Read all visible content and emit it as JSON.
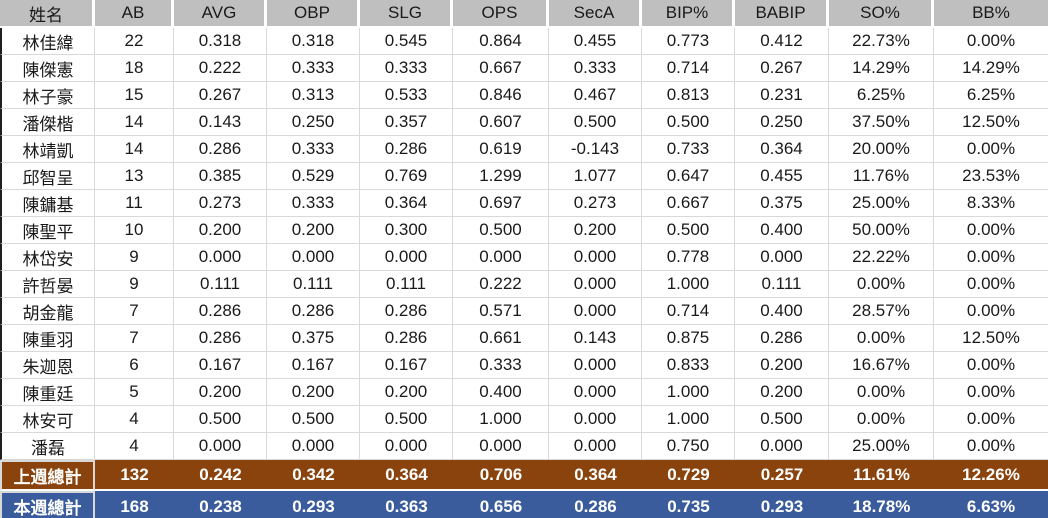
{
  "table": {
    "columns": [
      "姓名",
      "AB",
      "AVG",
      "OBP",
      "SLG",
      "OPS",
      "SecA",
      "BIP%",
      "BABIP",
      "SO%",
      "BB%"
    ],
    "rows": [
      {
        "name": "林佳緯",
        "values": [
          "22",
          "0.318",
          "0.318",
          "0.545",
          "0.864",
          "0.455",
          "0.773",
          "0.412",
          "22.73%",
          "0.00%"
        ]
      },
      {
        "name": "陳傑憲",
        "values": [
          "18",
          "0.222",
          "0.333",
          "0.333",
          "0.667",
          "0.333",
          "0.714",
          "0.267",
          "14.29%",
          "14.29%"
        ]
      },
      {
        "name": "林子豪",
        "values": [
          "15",
          "0.267",
          "0.313",
          "0.533",
          "0.846",
          "0.467",
          "0.813",
          "0.231",
          "6.25%",
          "6.25%"
        ]
      },
      {
        "name": "潘傑楷",
        "values": [
          "14",
          "0.143",
          "0.250",
          "0.357",
          "0.607",
          "0.500",
          "0.500",
          "0.250",
          "37.50%",
          "12.50%"
        ]
      },
      {
        "name": "林靖凱",
        "values": [
          "14",
          "0.286",
          "0.333",
          "0.286",
          "0.619",
          "-0.143",
          "0.733",
          "0.364",
          "20.00%",
          "0.00%"
        ]
      },
      {
        "name": "邱智呈",
        "values": [
          "13",
          "0.385",
          "0.529",
          "0.769",
          "1.299",
          "1.077",
          "0.647",
          "0.455",
          "11.76%",
          "23.53%"
        ]
      },
      {
        "name": "陳鏞基",
        "values": [
          "11",
          "0.273",
          "0.333",
          "0.364",
          "0.697",
          "0.273",
          "0.667",
          "0.375",
          "25.00%",
          "8.33%"
        ]
      },
      {
        "name": "陳聖平",
        "values": [
          "10",
          "0.200",
          "0.200",
          "0.300",
          "0.500",
          "0.200",
          "0.500",
          "0.400",
          "50.00%",
          "0.00%"
        ]
      },
      {
        "name": "林岱安",
        "values": [
          "9",
          "0.000",
          "0.000",
          "0.000",
          "0.000",
          "0.000",
          "0.778",
          "0.000",
          "22.22%",
          "0.00%"
        ]
      },
      {
        "name": "許哲晏",
        "values": [
          "9",
          "0.111",
          "0.111",
          "0.111",
          "0.222",
          "0.000",
          "1.000",
          "0.111",
          "0.00%",
          "0.00%"
        ]
      },
      {
        "name": "胡金龍",
        "values": [
          "7",
          "0.286",
          "0.286",
          "0.286",
          "0.571",
          "0.000",
          "0.714",
          "0.400",
          "28.57%",
          "0.00%"
        ]
      },
      {
        "name": "陳重羽",
        "values": [
          "7",
          "0.286",
          "0.375",
          "0.286",
          "0.661",
          "0.143",
          "0.875",
          "0.286",
          "0.00%",
          "12.50%"
        ]
      },
      {
        "name": "朱迦恩",
        "values": [
          "6",
          "0.167",
          "0.167",
          "0.167",
          "0.333",
          "0.000",
          "0.833",
          "0.200",
          "16.67%",
          "0.00%"
        ]
      },
      {
        "name": "陳重廷",
        "values": [
          "5",
          "0.200",
          "0.200",
          "0.200",
          "0.400",
          "0.000",
          "1.000",
          "0.200",
          "0.00%",
          "0.00%"
        ]
      },
      {
        "name": "林安可",
        "values": [
          "4",
          "0.500",
          "0.500",
          "0.500",
          "1.000",
          "0.000",
          "1.000",
          "0.500",
          "0.00%",
          "0.00%"
        ]
      },
      {
        "name": "潘磊",
        "values": [
          "4",
          "0.000",
          "0.000",
          "0.000",
          "0.000",
          "0.000",
          "0.750",
          "0.000",
          "25.00%",
          "0.00%"
        ]
      }
    ],
    "totals": [
      {
        "label": "上週總計",
        "key": "last-week",
        "bg": "#8B430D",
        "values": [
          "132",
          "0.242",
          "0.342",
          "0.364",
          "0.706",
          "0.364",
          "0.729",
          "0.257",
          "11.61%",
          "12.26%"
        ]
      },
      {
        "label": "本週總計",
        "key": "this-week",
        "bg": "#3A5C9C",
        "values": [
          "168",
          "0.238",
          "0.293",
          "0.363",
          "0.656",
          "0.286",
          "0.735",
          "0.293",
          "18.78%",
          "6.63%"
        ]
      }
    ],
    "colors": {
      "header_bg": "#BFBFBF",
      "grid_line": "#D9D9D9",
      "data_left_border": "#1F1F1F",
      "last_week_bg": "#8B430D",
      "this_week_bg": "#3A5C9C",
      "total_text": "#FFFFFF",
      "body_text": "#1A1A1A"
    }
  }
}
